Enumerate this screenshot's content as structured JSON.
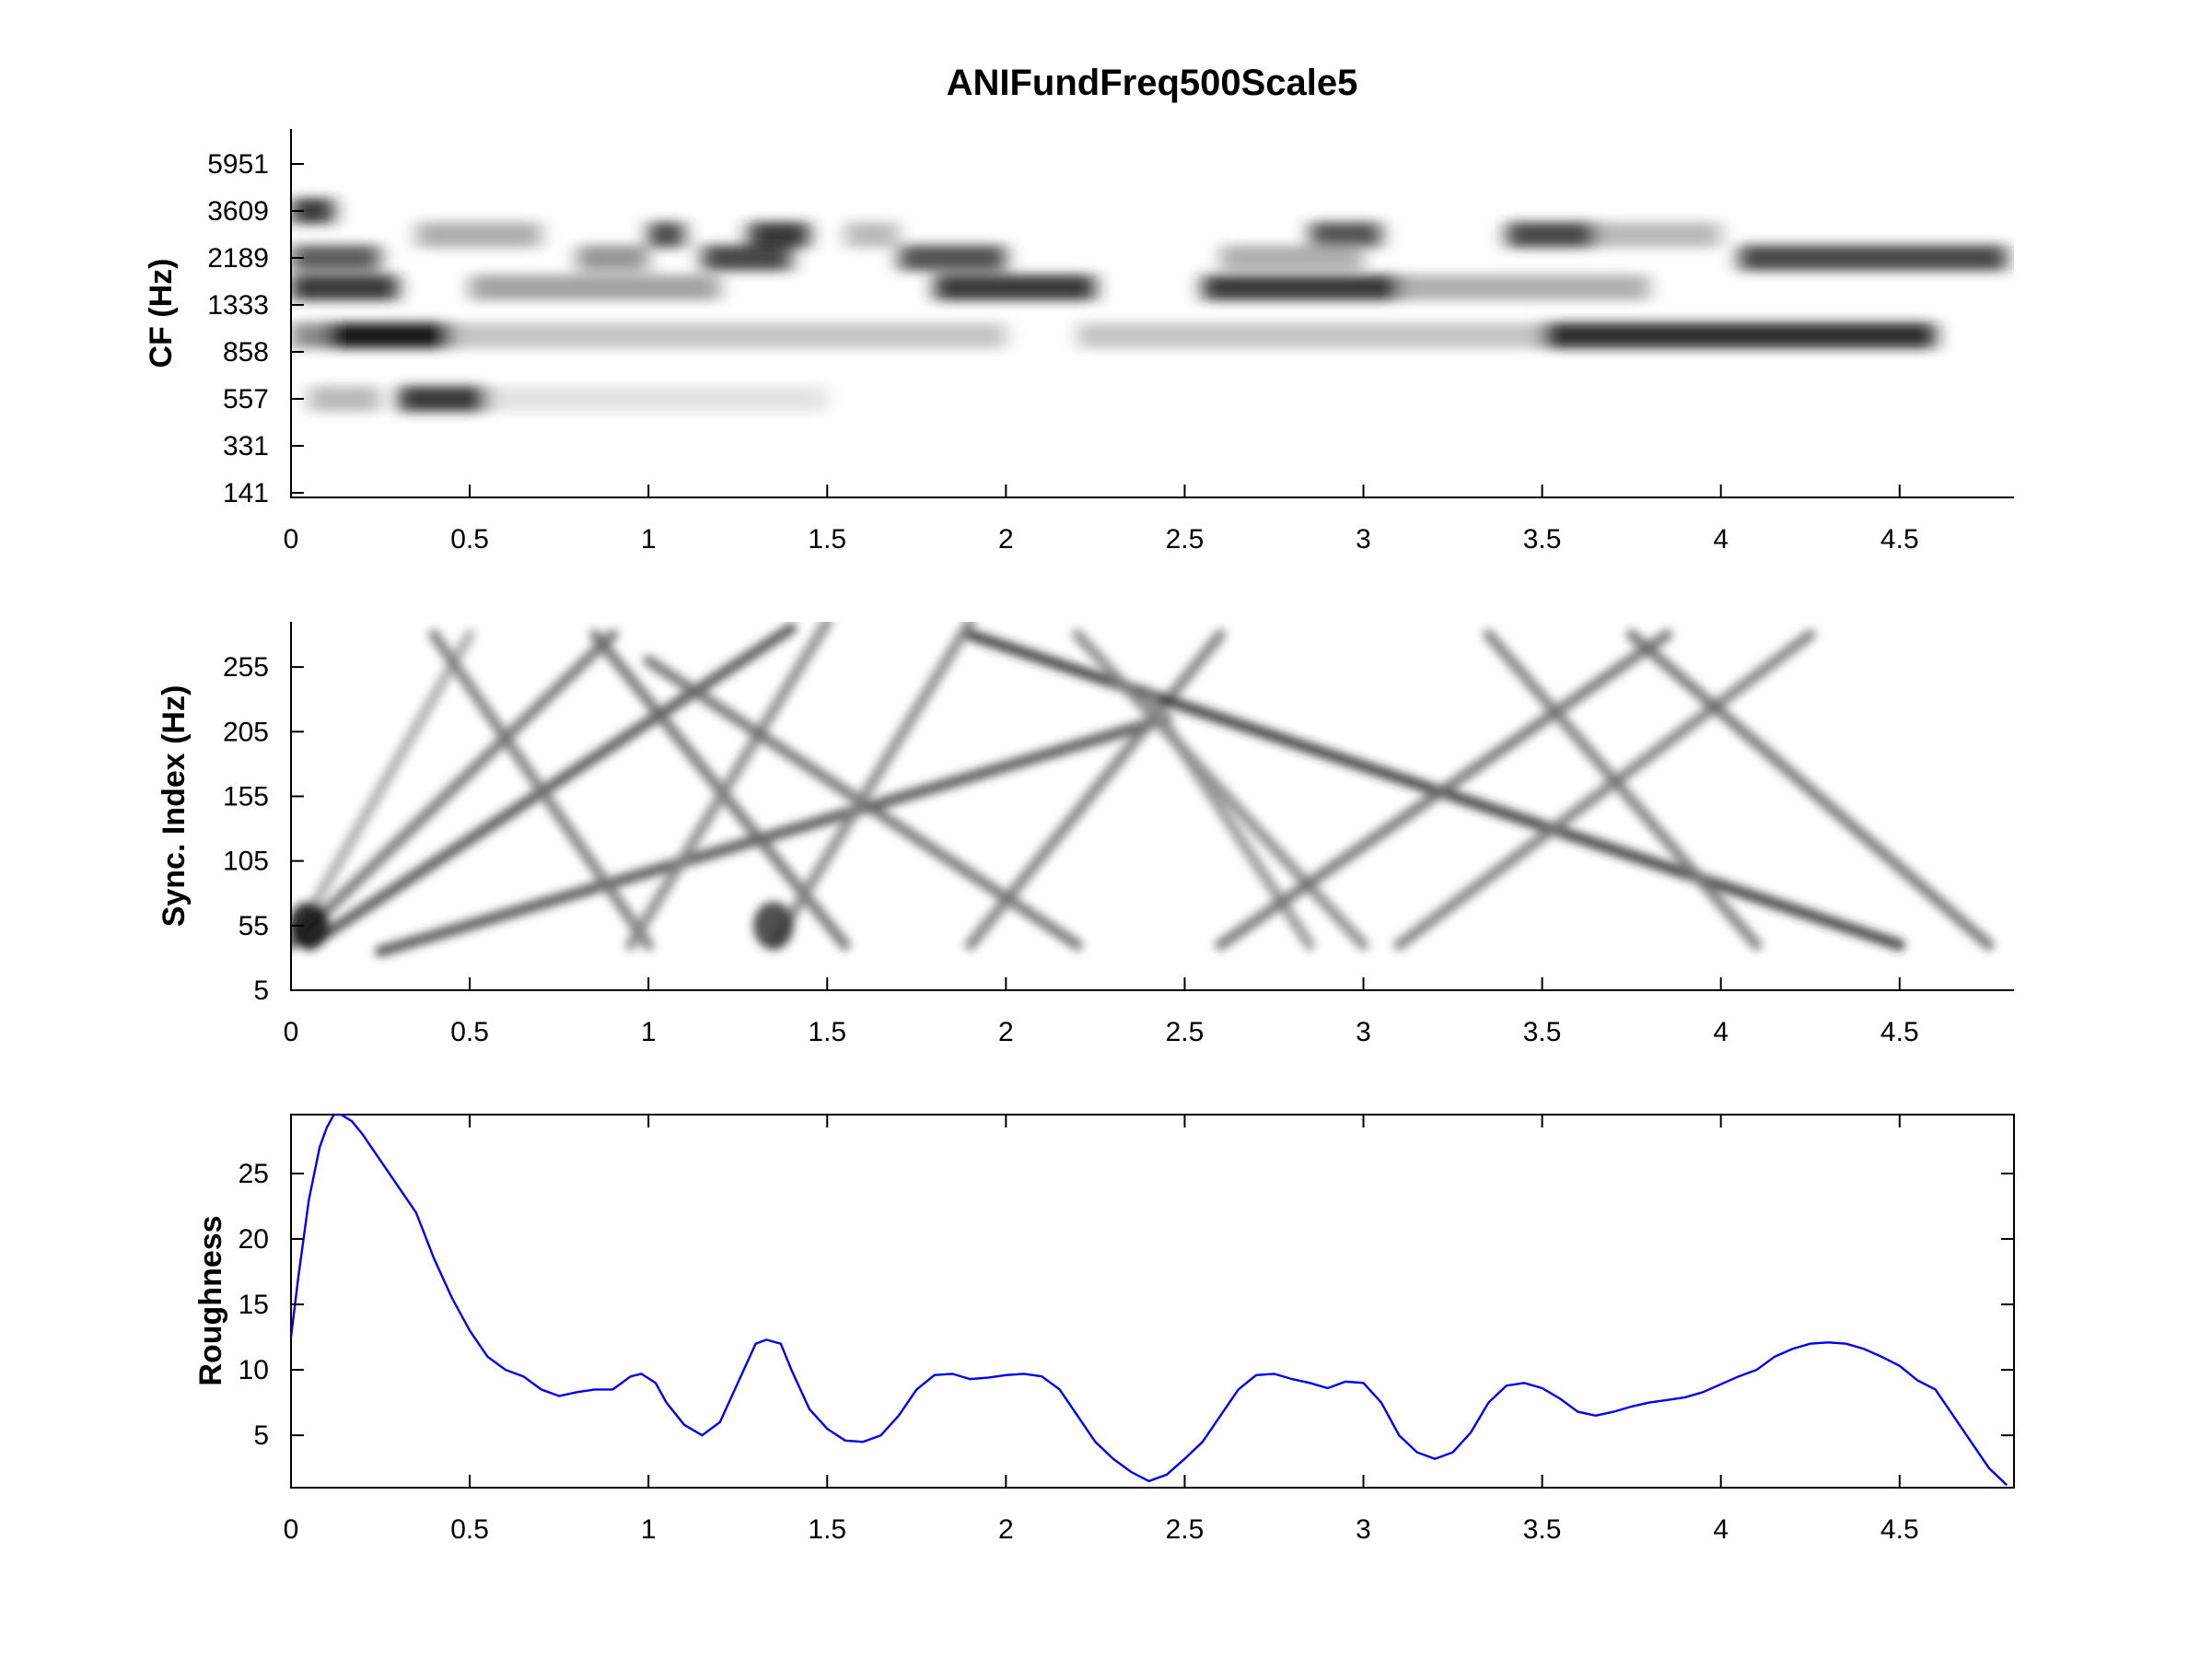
{
  "title": "ANIFundFreq500Scale5",
  "chart_data": [
    {
      "type": "heatmap",
      "name": "cf-spectrogram",
      "ylabel": "CF (Hz)",
      "xlabel": "",
      "xlim": [
        0,
        4.82
      ],
      "x_ticks": [
        "0",
        "0.5",
        "1",
        "1.5",
        "2",
        "2.5",
        "3",
        "3.5",
        "4",
        "4.5"
      ],
      "y_ticks": [
        "141",
        "331",
        "557",
        "858",
        "1333",
        "2189",
        "3609",
        "5951"
      ],
      "colormap": "inverted gray (white = 0, black = max)",
      "grid": false,
      "bands": [
        {
          "cf": 3609,
          "segments": [
            [
              0.0,
              0.12,
              0.85
            ]
          ]
        },
        {
          "cf": 2800,
          "segments": [
            [
              0.35,
              0.7,
              0.35
            ],
            [
              1.0,
              1.1,
              0.8
            ],
            [
              1.28,
              1.45,
              0.85
            ],
            [
              1.55,
              1.7,
              0.3
            ],
            [
              2.85,
              3.05,
              0.75
            ],
            [
              3.4,
              3.65,
              0.8
            ],
            [
              3.65,
              4.0,
              0.3
            ]
          ]
        },
        {
          "cf": 2189,
          "segments": [
            [
              0.0,
              0.25,
              0.7
            ],
            [
              0.8,
              1.0,
              0.45
            ],
            [
              1.15,
              1.4,
              0.8
            ],
            [
              1.7,
              2.0,
              0.75
            ],
            [
              2.6,
              3.0,
              0.35
            ],
            [
              4.05,
              4.8,
              0.8
            ]
          ]
        },
        {
          "cf": 1600,
          "segments": [
            [
              0.0,
              0.3,
              0.85
            ],
            [
              0.5,
              1.2,
              0.4
            ],
            [
              1.8,
              2.25,
              0.85
            ],
            [
              2.55,
              3.1,
              0.85
            ],
            [
              3.1,
              3.8,
              0.35
            ]
          ]
        },
        {
          "cf": 1000,
          "segments": [
            [
              0.0,
              0.1,
              0.5
            ],
            [
              0.1,
              0.45,
              1.0
            ],
            [
              0.45,
              2.0,
              0.25
            ],
            [
              2.2,
              3.5,
              0.25
            ],
            [
              3.5,
              4.6,
              0.9
            ]
          ]
        },
        {
          "cf": 557,
          "segments": [
            [
              0.05,
              0.25,
              0.3
            ],
            [
              0.3,
              0.55,
              0.85
            ],
            [
              0.55,
              1.5,
              0.12
            ]
          ]
        }
      ]
    },
    {
      "type": "heatmap",
      "name": "sync-index",
      "ylabel": "Sync. Index (Hz)",
      "xlabel": "",
      "xlim": [
        0,
        4.82
      ],
      "ylim": [
        5,
        290
      ],
      "x_ticks": [
        "0",
        "0.5",
        "1",
        "1.5",
        "2",
        "2.5",
        "3",
        "3.5",
        "4",
        "4.5"
      ],
      "y_ticks": [
        "5",
        "55",
        "105",
        "155",
        "205",
        "255"
      ],
      "colormap": "inverted gray (white = 0, black = max)",
      "grid": false,
      "tracks": [
        {
          "from": [
            0.0,
            40
          ],
          "to": [
            0.5,
            280
          ],
          "intensity": 0.35
        },
        {
          "from": [
            0.0,
            40
          ],
          "to": [
            0.9,
            280
          ],
          "intensity": 0.6
        },
        {
          "from": [
            0.05,
            40
          ],
          "to": [
            1.4,
            285
          ],
          "intensity": 0.75
        },
        {
          "from": [
            0.25,
            35
          ],
          "to": [
            2.45,
            215
          ],
          "intensity": 0.75
        },
        {
          "from": [
            0.4,
            280
          ],
          "to": [
            1.0,
            40
          ],
          "intensity": 0.55
        },
        {
          "from": [
            0.85,
            280
          ],
          "to": [
            1.55,
            40
          ],
          "intensity": 0.6
        },
        {
          "from": [
            0.95,
            40
          ],
          "to": [
            1.5,
            290
          ],
          "intensity": 0.5
        },
        {
          "from": [
            1.0,
            260
          ],
          "to": [
            2.2,
            40
          ],
          "intensity": 0.6
        },
        {
          "from": [
            1.35,
            40
          ],
          "to": [
            1.9,
            290
          ],
          "intensity": 0.5
        },
        {
          "from": [
            1.9,
            40
          ],
          "to": [
            2.6,
            280
          ],
          "intensity": 0.55
        },
        {
          "from": [
            1.9,
            280
          ],
          "to": [
            4.5,
            40
          ],
          "intensity": 0.85
        },
        {
          "from": [
            2.2,
            280
          ],
          "to": [
            3.0,
            40
          ],
          "intensity": 0.5
        },
        {
          "from": [
            2.4,
            230
          ],
          "to": [
            2.85,
            40
          ],
          "intensity": 0.45
        },
        {
          "from": [
            2.6,
            40
          ],
          "to": [
            3.85,
            280
          ],
          "intensity": 0.6
        },
        {
          "from": [
            3.1,
            40
          ],
          "to": [
            4.25,
            280
          ],
          "intensity": 0.55
        },
        {
          "from": [
            3.35,
            280
          ],
          "to": [
            4.1,
            40
          ],
          "intensity": 0.55
        },
        {
          "from": [
            3.75,
            280
          ],
          "to": [
            4.75,
            40
          ],
          "intensity": 0.6
        }
      ],
      "blobs": [
        {
          "x": 0.05,
          "y": 55,
          "intensity": 0.95
        },
        {
          "x": 1.35,
          "y": 55,
          "intensity": 0.8
        }
      ]
    },
    {
      "type": "line",
      "name": "roughness",
      "ylabel": "Roughness",
      "xlabel": "",
      "xlim": [
        0,
        4.82
      ],
      "ylim": [
        1,
        29.5
      ],
      "x_ticks": [
        "0",
        "0.5",
        "1",
        "1.5",
        "2",
        "2.5",
        "3",
        "3.5",
        "4",
        "4.5"
      ],
      "y_ticks": [
        "5",
        "10",
        "15",
        "20",
        "25"
      ],
      "line_color": "#0000ee",
      "grid": false,
      "series": [
        {
          "x": [
            0.0,
            0.02,
            0.05,
            0.08,
            0.1,
            0.12,
            0.14,
            0.17,
            0.2,
            0.25,
            0.3,
            0.35,
            0.4,
            0.45,
            0.5,
            0.55,
            0.6,
            0.65,
            0.7,
            0.75,
            0.8,
            0.85,
            0.9,
            0.95,
            0.98,
            1.02,
            1.05,
            1.1,
            1.15,
            1.2,
            1.25,
            1.3,
            1.33,
            1.37,
            1.4,
            1.45,
            1.5,
            1.55,
            1.6,
            1.65,
            1.7,
            1.75,
            1.8,
            1.85,
            1.9,
            1.95,
            2.0,
            2.05,
            2.1,
            2.15,
            2.2,
            2.25,
            2.3,
            2.35,
            2.4,
            2.45,
            2.5,
            2.55,
            2.6,
            2.65,
            2.7,
            2.75,
            2.8,
            2.85,
            2.9,
            2.95,
            3.0,
            3.05,
            3.1,
            3.15,
            3.2,
            3.25,
            3.3,
            3.35,
            3.4,
            3.45,
            3.5,
            3.55,
            3.6,
            3.65,
            3.7,
            3.75,
            3.8,
            3.85,
            3.9,
            3.95,
            4.0,
            4.05,
            4.1,
            4.15,
            4.2,
            4.25,
            4.3,
            4.35,
            4.4,
            4.45,
            4.5,
            4.55,
            4.6,
            4.65,
            4.7,
            4.75,
            4.8
          ],
          "y": [
            12.5,
            17,
            23,
            27,
            28.5,
            29.5,
            29.5,
            29,
            28,
            26,
            24,
            22,
            18.5,
            15.5,
            13,
            11,
            10,
            9.5,
            8.5,
            8,
            8.3,
            8.5,
            8.5,
            9.5,
            9.7,
            9,
            7.5,
            5.8,
            5,
            6,
            9,
            12,
            12.3,
            12,
            10,
            7,
            5.5,
            4.6,
            4.5,
            5,
            6.5,
            8.5,
            9.6,
            9.7,
            9.3,
            9.4,
            9.6,
            9.7,
            9.5,
            8.5,
            6.5,
            4.5,
            3.2,
            2.2,
            1.5,
            2,
            3.2,
            4.5,
            6.5,
            8.5,
            9.6,
            9.7,
            9.3,
            9.0,
            8.6,
            9.1,
            9,
            7.5,
            5,
            3.7,
            3.2,
            3.7,
            5.2,
            7.5,
            8.8,
            9,
            8.6,
            7.8,
            6.8,
            6.5,
            6.8,
            7.2,
            7.5,
            7.7,
            7.9,
            8.3,
            8.9,
            9.5,
            10.0,
            11,
            11.6,
            12.0,
            12.1,
            12.0,
            11.6,
            11.0,
            10.3,
            9.2,
            8.5,
            6.5,
            4.5,
            2.5,
            1.2
          ]
        }
      ]
    }
  ]
}
